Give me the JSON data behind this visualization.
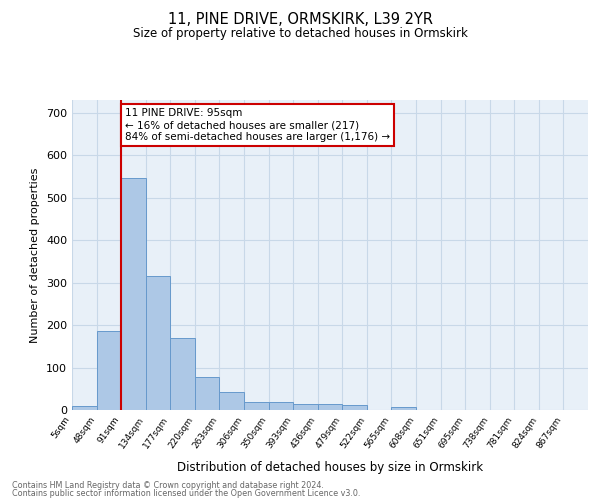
{
  "title1": "11, PINE DRIVE, ORMSKIRK, L39 2YR",
  "title2": "Size of property relative to detached houses in Ormskirk",
  "xlabel": "Distribution of detached houses by size in Ormskirk",
  "ylabel": "Number of detached properties",
  "bar_values": [
    10,
    187,
    547,
    315,
    170,
    77,
    42,
    18,
    18,
    13,
    13,
    12,
    0,
    6,
    0,
    0,
    0,
    0,
    0,
    0
  ],
  "bar_labels": [
    "5sqm",
    "48sqm",
    "91sqm",
    "134sqm",
    "177sqm",
    "220sqm",
    "263sqm",
    "306sqm",
    "350sqm",
    "393sqm",
    "436sqm",
    "479sqm",
    "522sqm",
    "565sqm",
    "608sqm",
    "651sqm",
    "695sqm",
    "738sqm",
    "781sqm",
    "824sqm",
    "867sqm"
  ],
  "n_labels": 21,
  "bar_color": "#adc8e6",
  "bar_edge_color": "#6699cc",
  "vline_color": "#cc0000",
  "vline_x": 2.0,
  "annotation_text": "11 PINE DRIVE: 95sqm\n← 16% of detached houses are smaller (217)\n84% of semi-detached houses are larger (1,176) →",
  "annotation_box_color": "#cc0000",
  "annotation_bg": "#ffffff",
  "ylim": [
    0,
    730
  ],
  "yticks": [
    0,
    100,
    200,
    300,
    400,
    500,
    600,
    700
  ],
  "xlim": [
    0,
    21
  ],
  "grid_color": "#c8d8e8",
  "bg_color": "#e8f0f8",
  "footer1": "Contains HM Land Registry data © Crown copyright and database right 2024.",
  "footer2": "Contains public sector information licensed under the Open Government Licence v3.0."
}
